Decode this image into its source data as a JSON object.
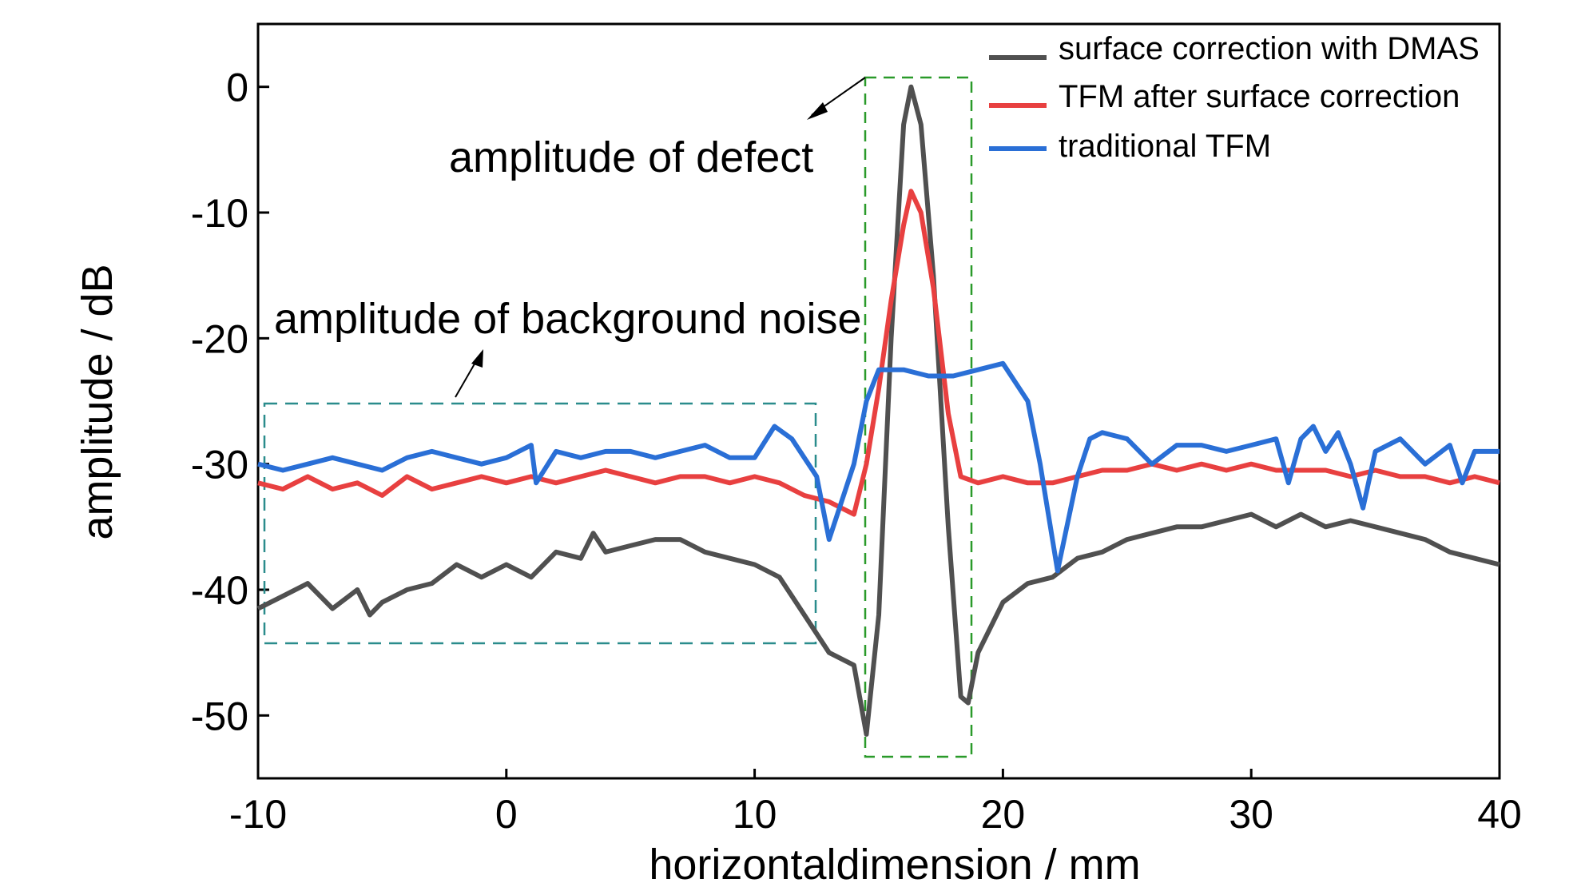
{
  "chart_data": {
    "type": "line",
    "title": "",
    "xlabel": "horizontaldimension / mm",
    "ylabel": "amplitude / dB",
    "xlim": [
      -10,
      40
    ],
    "ylim": [
      -55,
      5
    ],
    "xticks": [
      -10,
      0,
      10,
      20,
      30,
      40
    ],
    "yticks": [
      0,
      -10,
      -20,
      -30,
      -40,
      -50
    ],
    "grid": false,
    "legend_position": "top-right",
    "series": [
      {
        "name": "surface correction with DMAS",
        "color": "#505050",
        "points": [
          [
            -10,
            -41.5
          ],
          [
            -9,
            -40.5
          ],
          [
            -8,
            -39.5
          ],
          [
            -7,
            -41.5
          ],
          [
            -6,
            -40
          ],
          [
            -5.5,
            -42
          ],
          [
            -5,
            -41
          ],
          [
            -4,
            -40
          ],
          [
            -3,
            -39.5
          ],
          [
            -2,
            -38
          ],
          [
            -1,
            -39
          ],
          [
            0,
            -38
          ],
          [
            1,
            -39
          ],
          [
            2,
            -37
          ],
          [
            3,
            -37.5
          ],
          [
            3.5,
            -35.5
          ],
          [
            4,
            -37
          ],
          [
            5,
            -36.5
          ],
          [
            6,
            -36
          ],
          [
            7,
            -36
          ],
          [
            8,
            -37
          ],
          [
            9,
            -37.5
          ],
          [
            10,
            -38
          ],
          [
            11,
            -39
          ],
          [
            12,
            -42
          ],
          [
            13,
            -45
          ],
          [
            14,
            -46
          ],
          [
            14.5,
            -51.5
          ],
          [
            15,
            -42
          ],
          [
            15.5,
            -20
          ],
          [
            16,
            -3
          ],
          [
            16.3,
            0
          ],
          [
            16.7,
            -3
          ],
          [
            17.2,
            -15
          ],
          [
            17.8,
            -35
          ],
          [
            18.3,
            -48.5
          ],
          [
            18.6,
            -49
          ],
          [
            19,
            -45
          ],
          [
            20,
            -41
          ],
          [
            21,
            -39.5
          ],
          [
            22,
            -39
          ],
          [
            23,
            -37.5
          ],
          [
            24,
            -37
          ],
          [
            25,
            -36
          ],
          [
            26,
            -35.5
          ],
          [
            27,
            -35
          ],
          [
            28,
            -35
          ],
          [
            29,
            -34.5
          ],
          [
            30,
            -34
          ],
          [
            31,
            -35
          ],
          [
            32,
            -34
          ],
          [
            33,
            -35
          ],
          [
            34,
            -34.5
          ],
          [
            35,
            -35
          ],
          [
            36,
            -35.5
          ],
          [
            37,
            -36
          ],
          [
            38,
            -37
          ],
          [
            39,
            -37.5
          ],
          [
            40,
            -38
          ]
        ]
      },
      {
        "name": "TFM after surface correction",
        "color": "#e84040",
        "points": [
          [
            -10,
            -31.5
          ],
          [
            -9,
            -32
          ],
          [
            -8,
            -31
          ],
          [
            -7,
            -32
          ],
          [
            -6,
            -31.5
          ],
          [
            -5,
            -32.5
          ],
          [
            -4,
            -31
          ],
          [
            -3,
            -32
          ],
          [
            -2,
            -31.5
          ],
          [
            -1,
            -31
          ],
          [
            0,
            -31.5
          ],
          [
            1,
            -31
          ],
          [
            2,
            -31.5
          ],
          [
            3,
            -31
          ],
          [
            4,
            -30.5
          ],
          [
            5,
            -31
          ],
          [
            6,
            -31.5
          ],
          [
            7,
            -31
          ],
          [
            8,
            -31
          ],
          [
            9,
            -31.5
          ],
          [
            10,
            -31
          ],
          [
            11,
            -31.5
          ],
          [
            12,
            -32.5
          ],
          [
            13,
            -33
          ],
          [
            14,
            -34
          ],
          [
            14.5,
            -30
          ],
          [
            15,
            -24
          ],
          [
            15.5,
            -17
          ],
          [
            16,
            -11
          ],
          [
            16.3,
            -8.3
          ],
          [
            16.7,
            -10
          ],
          [
            17.2,
            -16
          ],
          [
            17.8,
            -26
          ],
          [
            18.3,
            -31
          ],
          [
            19,
            -31.5
          ],
          [
            20,
            -31
          ],
          [
            21,
            -31.5
          ],
          [
            22,
            -31.5
          ],
          [
            23,
            -31
          ],
          [
            24,
            -30.5
          ],
          [
            25,
            -30.5
          ],
          [
            26,
            -30
          ],
          [
            27,
            -30.5
          ],
          [
            28,
            -30
          ],
          [
            29,
            -30.5
          ],
          [
            30,
            -30
          ],
          [
            31,
            -30.5
          ],
          [
            32,
            -30.5
          ],
          [
            33,
            -30.5
          ],
          [
            34,
            -31
          ],
          [
            35,
            -30.5
          ],
          [
            36,
            -31
          ],
          [
            37,
            -31
          ],
          [
            38,
            -31.5
          ],
          [
            39,
            -31
          ],
          [
            40,
            -31.5
          ]
        ]
      },
      {
        "name": "traditional TFM",
        "color": "#2a6fd6",
        "points": [
          [
            -10,
            -30
          ],
          [
            -9,
            -30.5
          ],
          [
            -8,
            -30
          ],
          [
            -7,
            -29.5
          ],
          [
            -6,
            -30
          ],
          [
            -5,
            -30.5
          ],
          [
            -4,
            -29.5
          ],
          [
            -3,
            -29
          ],
          [
            -2,
            -29.5
          ],
          [
            -1,
            -30
          ],
          [
            0,
            -29.5
          ],
          [
            1,
            -28.5
          ],
          [
            1.2,
            -31.5
          ],
          [
            2,
            -29
          ],
          [
            3,
            -29.5
          ],
          [
            4,
            -29
          ],
          [
            5,
            -29
          ],
          [
            6,
            -29.5
          ],
          [
            7,
            -29
          ],
          [
            8,
            -28.5
          ],
          [
            9,
            -29.5
          ],
          [
            10,
            -29.5
          ],
          [
            10.8,
            -27
          ],
          [
            11.5,
            -28
          ],
          [
            12.5,
            -31
          ],
          [
            13,
            -36
          ],
          [
            14,
            -30
          ],
          [
            14.5,
            -25
          ],
          [
            15,
            -22.5
          ],
          [
            16,
            -22.5
          ],
          [
            17,
            -23
          ],
          [
            18,
            -23
          ],
          [
            19,
            -22.5
          ],
          [
            20,
            -22
          ],
          [
            21,
            -25
          ],
          [
            21.5,
            -30
          ],
          [
            22.2,
            -38.5
          ],
          [
            23,
            -31
          ],
          [
            23.5,
            -28
          ],
          [
            24,
            -27.5
          ],
          [
            25,
            -28
          ],
          [
            25.5,
            -29
          ],
          [
            26,
            -30
          ],
          [
            27,
            -28.5
          ],
          [
            28,
            -28.5
          ],
          [
            29,
            -29
          ],
          [
            30,
            -28.5
          ],
          [
            31,
            -28
          ],
          [
            31.5,
            -31.5
          ],
          [
            32,
            -28
          ],
          [
            32.5,
            -27
          ],
          [
            33,
            -29
          ],
          [
            33.5,
            -27.5
          ],
          [
            34,
            -30
          ],
          [
            34.5,
            -33.5
          ],
          [
            35,
            -29
          ],
          [
            36,
            -28
          ],
          [
            37,
            -30
          ],
          [
            38,
            -28.5
          ],
          [
            38.5,
            -31.5
          ],
          [
            39,
            -29
          ],
          [
            40,
            -29
          ]
        ]
      }
    ],
    "annotations": [
      {
        "text": "amplitude of defect"
      },
      {
        "text": "amplitude of background noise"
      }
    ]
  }
}
